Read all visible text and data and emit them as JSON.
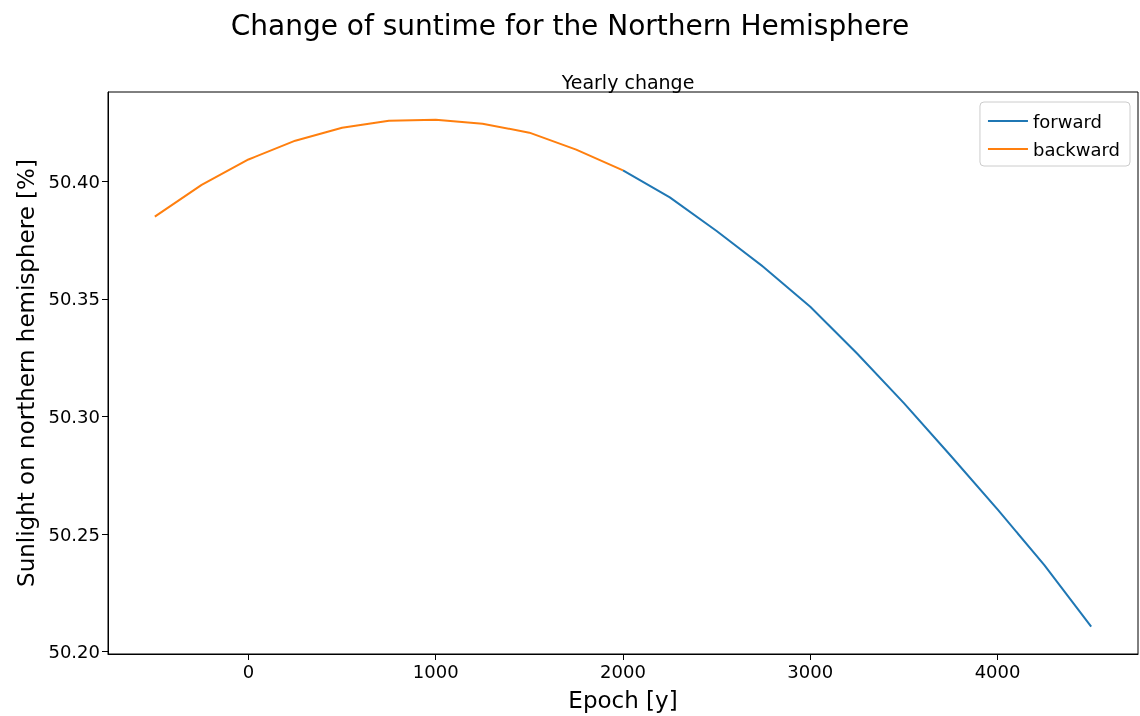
{
  "chart_data": {
    "type": "line",
    "title": "Change of suntime for the Northern Hemisphere",
    "subtitle": "Yearly change",
    "xlabel": "Epoch [y]",
    "ylabel": "Sunlight on northern hemisphere [%]",
    "series": [
      {
        "name": "forward",
        "color": "#1f77b4",
        "x": [
          2000,
          2250,
          2500,
          2750,
          3000,
          3250,
          3500,
          3750,
          4000,
          4250,
          4500
        ],
        "values": [
          50.4047,
          50.3932,
          50.3789,
          50.3636,
          50.3467,
          50.3268,
          50.3057,
          50.2833,
          50.2605,
          50.2368,
          50.2106
        ]
      },
      {
        "name": "backward",
        "color": "#ff7f0e",
        "x": [
          -500,
          -250,
          0,
          250,
          500,
          750,
          1000,
          1250,
          1500,
          1750,
          2000
        ],
        "values": [
          50.385,
          50.3985,
          50.4093,
          50.4173,
          50.4228,
          50.4258,
          50.4262,
          50.4245,
          50.4207,
          50.4135,
          50.4047
        ]
      }
    ],
    "xlim": [
      -750,
      4750
    ],
    "xticks": [
      0,
      1000,
      2000,
      3000,
      4000
    ],
    "ylim": [
      50.199,
      50.438
    ],
    "yticks": [
      {
        "value": 50.2,
        "label": "50.20"
      },
      {
        "value": 50.25,
        "label": "50.25"
      },
      {
        "value": 50.3,
        "label": "50.30"
      },
      {
        "value": 50.35,
        "label": "50.35"
      },
      {
        "value": 50.4,
        "label": "50.40"
      }
    ],
    "grid": false,
    "legend": "top right",
    "marker": "none",
    "line_style": "solid"
  }
}
